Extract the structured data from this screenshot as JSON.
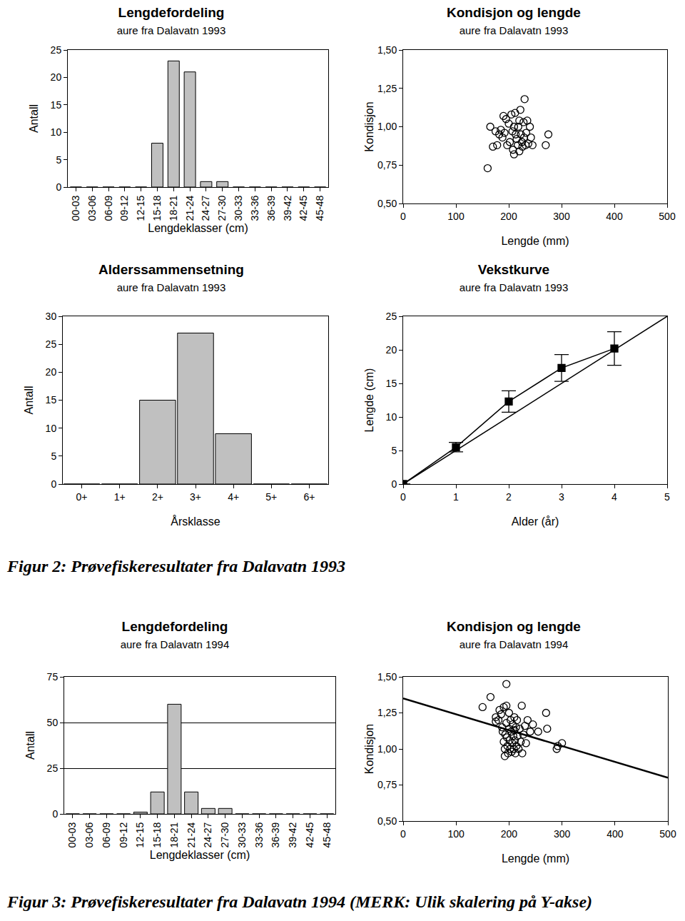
{
  "chart_data": [
    {
      "type": "bar",
      "title": "Lengdefordeling",
      "subtitle": "aure fra Dalavatn 1993",
      "x_label": "Lengdeklasser (cm)",
      "y_label": "Antall",
      "categories": [
        "00-03",
        "03-06",
        "06-09",
        "09-12",
        "12-15",
        "15-18",
        "18-21",
        "21-24",
        "24-27",
        "27-30",
        "30-33",
        "33-36",
        "36-39",
        "39-42",
        "42-45",
        "45-48"
      ],
      "values": [
        0,
        0,
        0,
        0,
        0,
        8,
        23,
        21,
        1,
        1,
        0,
        0,
        0,
        0,
        0,
        0
      ],
      "color": "#c0c0c0",
      "ylim": [
        0,
        25
      ],
      "yticks": [
        0,
        5,
        10,
        15,
        20,
        25
      ],
      "grid": false
    },
    {
      "type": "scatter",
      "title": "Kondisjon og lengde",
      "subtitle": "aure fra Dalavatn 1993",
      "x_label": "Lengde (mm)",
      "y_label": "Kondisjon",
      "series": [
        {
          "type": "scatter",
          "marker": "circle-open",
          "color": "#000000",
          "x": [
            160,
            165,
            170,
            175,
            178,
            182,
            185,
            188,
            190,
            192,
            195,
            197,
            200,
            202,
            205,
            207,
            208,
            210,
            210,
            212,
            213,
            215,
            217,
            218,
            220,
            220,
            222,
            223,
            225,
            226,
            228,
            229,
            230,
            232,
            233,
            235,
            237,
            240,
            242,
            245,
            270,
            275
          ],
          "values": [
            0.73,
            1.0,
            0.87,
            0.97,
            0.88,
            0.95,
            0.98,
            0.93,
            1.07,
            0.96,
            1.05,
            0.88,
            1.02,
            0.9,
            1.08,
            0.97,
            0.85,
            1.0,
            0.82,
            1.09,
            0.95,
            0.92,
            0.88,
            1.0,
            1.04,
            0.84,
            1.11,
            0.95,
            0.9,
            0.87,
            1.03,
            0.93,
            1.18,
            0.88,
            0.96,
            1.04,
            0.89,
            1.0,
            0.93,
            0.88,
            0.88,
            0.95
          ]
        }
      ],
      "xlim": [
        0,
        500
      ],
      "xticks": [
        0,
        100,
        200,
        300,
        400,
        500
      ],
      "ylim": [
        0.5,
        1.5
      ],
      "yticks": [
        {
          "value": 0.5,
          "label": "0,50"
        },
        {
          "value": 0.75,
          "label": "0,75"
        },
        {
          "value": 1.0,
          "label": "1,00"
        },
        {
          "value": 1.25,
          "label": "1,25"
        },
        {
          "value": 1.5,
          "label": "1,50"
        }
      ],
      "grid": false
    },
    {
      "type": "bar",
      "title": "Alderssammensetning",
      "subtitle": "aure fra Dalavatn 1993",
      "x_label": "Årsklasse",
      "y_label": "Antall",
      "categories": [
        "0+",
        "1+",
        "2+",
        "3+",
        "4+",
        "5+",
        "6+"
      ],
      "values": [
        0,
        0,
        15,
        27,
        9,
        0,
        0
      ],
      "color": "#c0c0c0",
      "ylim": [
        0,
        30
      ],
      "yticks": [
        0,
        5,
        10,
        15,
        20,
        25,
        30
      ],
      "grid": false
    },
    {
      "type": "line",
      "title": "Vekstkurve",
      "subtitle": "aure fra Dalavatn 1993",
      "x_label": "Alder (år)",
      "y_label": "Lengde (cm)",
      "series": [
        {
          "type": "line",
          "marker": "square",
          "line_style": "solid",
          "color": "#000000",
          "x": [
            0,
            1,
            2,
            3,
            4
          ],
          "values": [
            0,
            5.5,
            12.3,
            17.3,
            20.2
          ],
          "error": [
            0,
            0.7,
            1.6,
            2.0,
            2.5
          ]
        },
        {
          "type": "line",
          "marker": "none",
          "line_style": "solid",
          "color": "#000000",
          "x": [
            0,
            5
          ],
          "values": [
            0,
            25
          ]
        }
      ],
      "xlim": [
        0,
        5
      ],
      "xticks": [
        0,
        1,
        2,
        3,
        4,
        5
      ],
      "ylim": [
        0,
        25
      ],
      "yticks": [
        0,
        5,
        10,
        15,
        20,
        25
      ],
      "grid": false
    },
    {
      "type": "bar",
      "title": "Lengdefordeling",
      "subtitle": "aure fra Dalavatn 1994",
      "x_label": "Lengdeklasser (cm)",
      "y_label": "Antall",
      "categories": [
        "00-03",
        "03-06",
        "06-09",
        "09-12",
        "12-15",
        "15-18",
        "18-21",
        "21-24",
        "24-27",
        "27-30",
        "30-33",
        "33-36",
        "36-39",
        "39-42",
        "42-45",
        "45-48"
      ],
      "values": [
        0,
        0,
        0,
        0,
        1,
        12,
        60,
        12,
        3,
        3,
        0,
        0,
        0,
        0,
        0,
        0
      ],
      "color": "#c0c0c0",
      "ylim": [
        0,
        75
      ],
      "yticks": [
        0,
        25,
        50,
        75
      ],
      "grid": true
    },
    {
      "type": "scatter",
      "title": "Kondisjon og lengde",
      "subtitle": "aure fra Dalavatn 1994",
      "x_label": "Lengde (mm)",
      "y_label": "Kondisjon",
      "series": [
        {
          "type": "scatter",
          "marker": "circle-open",
          "color": "#000000",
          "x": [
            150,
            165,
            175,
            175,
            180,
            182,
            185,
            187,
            188,
            190,
            190,
            192,
            192,
            193,
            195,
            195,
            195,
            196,
            197,
            198,
            200,
            200,
            201,
            202,
            203,
            204,
            205,
            206,
            207,
            208,
            209,
            210,
            210,
            211,
            212,
            213,
            214,
            215,
            216,
            218,
            220,
            222,
            224,
            225,
            227,
            230,
            232,
            235,
            240,
            245,
            255,
            270,
            272,
            290,
            292,
            300
          ],
          "values": [
            1.29,
            1.36,
            1.22,
            1.19,
            1.2,
            1.27,
            1.24,
            1.15,
            1.12,
            1.29,
            1.05,
            1.0,
            0.95,
            1.1,
            1.45,
            1.3,
            1.18,
            1.08,
            1.02,
            0.97,
            1.25,
            1.14,
            1.06,
            1.0,
            1.2,
            1.12,
            0.98,
            1.04,
            1.17,
            1.09,
            1.0,
            1.22,
            1.13,
            1.06,
            0.97,
            1.15,
            1.02,
            1.2,
            1.09,
            1.0,
            1.14,
            1.05,
            1.3,
            0.97,
            1.1,
            1.16,
            1.04,
            1.2,
            1.12,
            1.17,
            1.12,
            1.25,
            1.14,
            1.0,
            1.02,
            1.04
          ]
        },
        {
          "type": "line",
          "marker": "none",
          "line_style": "solid",
          "color": "#000000",
          "x": [
            0,
            500
          ],
          "values": [
            1.35,
            0.8
          ]
        }
      ],
      "xlim": [
        0,
        500
      ],
      "xticks": [
        0,
        100,
        200,
        300,
        400,
        500
      ],
      "ylim": [
        0.5,
        1.5
      ],
      "yticks": [
        {
          "value": 0.5,
          "label": "0,50"
        },
        {
          "value": 0.75,
          "label": "0,75"
        },
        {
          "value": 1.0,
          "label": "1,00"
        },
        {
          "value": 1.25,
          "label": "1,25"
        },
        {
          "value": 1.5,
          "label": "1,50"
        }
      ],
      "grid": false
    }
  ],
  "captions": [
    "Figur 2: Prøvefiskeresultater fra Dalavatn 1993",
    "Figur 3: Prøvefiskeresultater fra Dalavatn 1994 (MERK: Ulik skalering på Y-akse)"
  ]
}
